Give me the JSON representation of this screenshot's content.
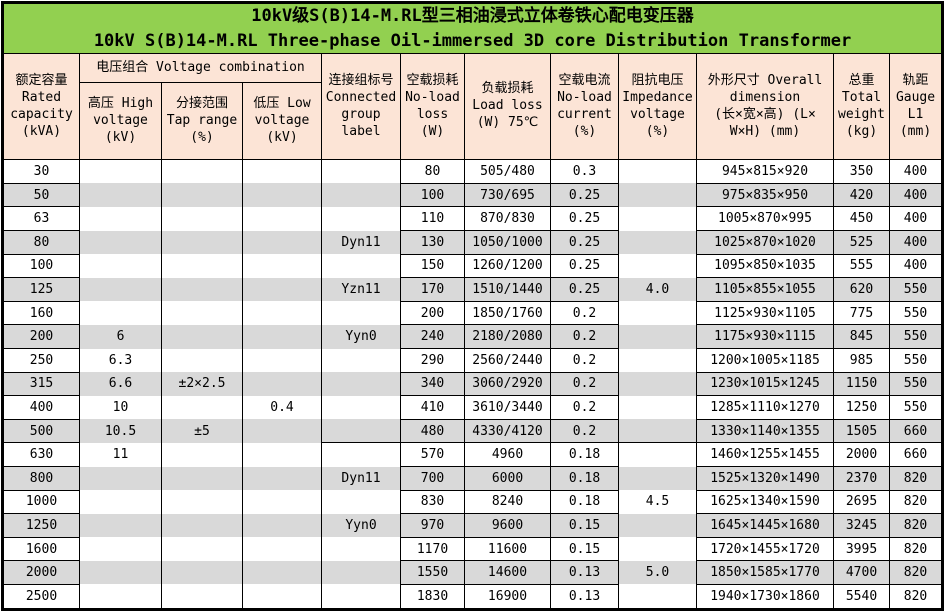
{
  "title": {
    "line1": "10kV级S(B)14-M.RL型三相油浸式立体卷铁心配电变压器",
    "line2": "10kV S(B)14-M.RL Three-phase Oil-immersed 3D core Distribution Transformer"
  },
  "header": {
    "rated_capacity": "额定容量\nRated\ncapacity\n(kVA)",
    "voltage_combination": "电压组合 Voltage combination",
    "high_voltage": "高压 High\nvoltage\n(kV)",
    "tap_range": "分接范围\nTap range\n(%)",
    "low_voltage": "低压 Low\nvoltage\n(kV)",
    "connected_group": "连接组标号\nConnected\ngroup\nlabel",
    "no_load_loss": "空载损耗\nNo-load\nloss\n(W)",
    "load_loss": "负载损耗\nLoad loss\n(W) 75℃",
    "no_load_current": "空载电流\nNo-load\ncurrent\n(%)",
    "impedance_voltage": "阻抗电压\nImpedance\nvoltage\n(%)",
    "overall_dimension": "外形尺寸 Overall\ndimension\n(长×宽×高) (L×\nW×H) (mm)",
    "total_weight": "总重\nTotal\nweight\n(kg)",
    "gauge": "轨距\nGauge\nL1\n(mm)"
  },
  "colors": {
    "title_bg": "#92D050",
    "header_bg": "#FCE4D6",
    "row_alt_bg": "#D9D9D9",
    "border": "#000000",
    "text": "#000000"
  },
  "rows": [
    {
      "capacity": "30",
      "hv": "",
      "tap": "",
      "lv": "",
      "group": "",
      "no_load_loss": "80",
      "load_loss": "505/480",
      "no_load_current": "0.3",
      "impedance": "",
      "dimension": "945×815×920",
      "weight": "350",
      "gauge": "400"
    },
    {
      "capacity": "50",
      "hv": "",
      "tap": "",
      "lv": "",
      "group": "",
      "no_load_loss": "100",
      "load_loss": "730/695",
      "no_load_current": "0.25",
      "impedance": "",
      "dimension": "975×835×950",
      "weight": "420",
      "gauge": "400"
    },
    {
      "capacity": "63",
      "hv": "",
      "tap": "",
      "lv": "",
      "group": "",
      "no_load_loss": "110",
      "load_loss": "870/830",
      "no_load_current": "0.25",
      "impedance": "",
      "dimension": "1005×870×995",
      "weight": "450",
      "gauge": "400"
    },
    {
      "capacity": "80",
      "hv": "",
      "tap": "",
      "lv": "",
      "group": "Dyn11",
      "no_load_loss": "130",
      "load_loss": "1050/1000",
      "no_load_current": "0.25",
      "impedance": "",
      "dimension": "1025×870×1020",
      "weight": "525",
      "gauge": "400"
    },
    {
      "capacity": "100",
      "hv": "",
      "tap": "",
      "lv": "",
      "group": "",
      "no_load_loss": "150",
      "load_loss": "1260/1200",
      "no_load_current": "0.25",
      "impedance": "",
      "dimension": "1095×850×1035",
      "weight": "555",
      "gauge": "400"
    },
    {
      "capacity": "125",
      "hv": "",
      "tap": "",
      "lv": "",
      "group": "Yzn11",
      "no_load_loss": "170",
      "load_loss": "1510/1440",
      "no_load_current": "0.25",
      "impedance": "4.0",
      "dimension": "1105×855×1055",
      "weight": "620",
      "gauge": "550"
    },
    {
      "capacity": "160",
      "hv": "",
      "tap": "",
      "lv": "",
      "group": "",
      "no_load_loss": "200",
      "load_loss": "1850/1760",
      "no_load_current": "0.2",
      "impedance": "",
      "dimension": "1125×930×1105",
      "weight": "775",
      "gauge": "550"
    },
    {
      "capacity": "200",
      "hv": "6",
      "tap": "",
      "lv": "",
      "group": "Yyn0",
      "no_load_loss": "240",
      "load_loss": "2180/2080",
      "no_load_current": "0.2",
      "impedance": "",
      "dimension": "1175×930×1115",
      "weight": "845",
      "gauge": "550"
    },
    {
      "capacity": "250",
      "hv": "6.3",
      "tap": "",
      "lv": "",
      "group": "",
      "no_load_loss": "290",
      "load_loss": "2560/2440",
      "no_load_current": "0.2",
      "impedance": "",
      "dimension": "1200×1005×1185",
      "weight": "985",
      "gauge": "550"
    },
    {
      "capacity": "315",
      "hv": "6.6",
      "tap": "±2×2.5",
      "lv": "",
      "group": "",
      "no_load_loss": "340",
      "load_loss": "3060/2920",
      "no_load_current": "0.2",
      "impedance": "",
      "dimension": "1230×1015×1245",
      "weight": "1150",
      "gauge": "550"
    },
    {
      "capacity": "400",
      "hv": "10",
      "tap": "",
      "lv": "0.4",
      "group": "",
      "no_load_loss": "410",
      "load_loss": "3610/3440",
      "no_load_current": "0.2",
      "impedance": "",
      "dimension": "1285×1110×1270",
      "weight": "1250",
      "gauge": "550"
    },
    {
      "capacity": "500",
      "hv": "10.5",
      "tap": "±5",
      "lv": "",
      "group": "",
      "no_load_loss": "480",
      "load_loss": "4330/4120",
      "no_load_current": "0.2",
      "impedance": "",
      "dimension": "1330×1140×1355",
      "weight": "1505",
      "gauge": "660"
    },
    {
      "capacity": "630",
      "hv": "11",
      "tap": "",
      "lv": "",
      "group": "",
      "no_load_loss": "570",
      "load_loss": "4960",
      "no_load_current": "0.18",
      "impedance": "",
      "dimension": "1460×1255×1455",
      "weight": "2000",
      "gauge": "660"
    },
    {
      "capacity": "800",
      "hv": "",
      "tap": "",
      "lv": "",
      "group": "Dyn11",
      "no_load_loss": "700",
      "load_loss": "6000",
      "no_load_current": "0.18",
      "impedance": "",
      "dimension": "1525×1320×1490",
      "weight": "2370",
      "gauge": "820"
    },
    {
      "capacity": "1000",
      "hv": "",
      "tap": "",
      "lv": "",
      "group": "",
      "no_load_loss": "830",
      "load_loss": "8240",
      "no_load_current": "0.18",
      "impedance": "4.5",
      "dimension": "1625×1340×1590",
      "weight": "2695",
      "gauge": "820"
    },
    {
      "capacity": "1250",
      "hv": "",
      "tap": "",
      "lv": "",
      "group": "Yyn0",
      "no_load_loss": "970",
      "load_loss": "9600",
      "no_load_current": "0.15",
      "impedance": "",
      "dimension": "1645×1445×1680",
      "weight": "3245",
      "gauge": "820"
    },
    {
      "capacity": "1600",
      "hv": "",
      "tap": "",
      "lv": "",
      "group": "",
      "no_load_loss": "1170",
      "load_loss": "11600",
      "no_load_current": "0.15",
      "impedance": "",
      "dimension": "1720×1455×1720",
      "weight": "3995",
      "gauge": "820"
    },
    {
      "capacity": "2000",
      "hv": "",
      "tap": "",
      "lv": "",
      "group": "",
      "no_load_loss": "1550",
      "load_loss": "14600",
      "no_load_current": "0.13",
      "impedance": "5.0",
      "dimension": "1850×1585×1770",
      "weight": "4700",
      "gauge": "820"
    },
    {
      "capacity": "2500",
      "hv": "",
      "tap": "",
      "lv": "",
      "group": "",
      "no_load_loss": "1830",
      "load_loss": "16900",
      "no_load_current": "0.13",
      "impedance": "",
      "dimension": "1940×1730×1860",
      "weight": "5540",
      "gauge": "820"
    }
  ]
}
